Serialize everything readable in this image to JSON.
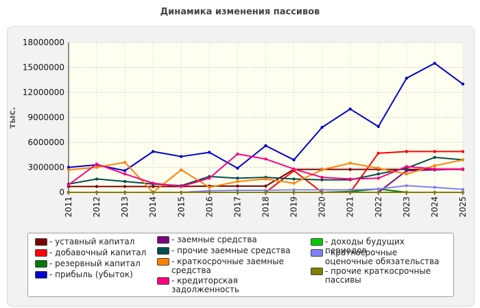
{
  "chart_data": {
    "type": "line",
    "title": "Динамика изменения пассивов",
    "ylabel": "тыс.",
    "xlabel": "",
    "ylim": [
      0,
      18000000
    ],
    "yticks": [
      0,
      3000000,
      6000000,
      9000000,
      12000000,
      15000000,
      18000000
    ],
    "ytick_labels": [
      "0",
      "3000000",
      "6000000",
      "9000000",
      "12000000",
      "15000000",
      "18000000"
    ],
    "x": [
      "2011",
      "2012",
      "2013",
      "2014",
      "2015",
      "2016",
      "2017",
      "2018",
      "2019",
      "2020",
      "2021",
      "2022",
      "2023",
      "2024",
      "2025"
    ],
    "grid": true,
    "legend_position": "bottom",
    "series": [
      {
        "name": "- уставный капитал",
        "color": "#7a0000",
        "values": [
          700000,
          700000,
          700000,
          700000,
          700000,
          750000,
          750000,
          750000,
          2750000,
          2750000,
          2750000,
          2750000,
          2750000,
          2750000,
          2750000
        ]
      },
      {
        "name": "- добавочный капитал",
        "color": "#ff0000",
        "values": [
          0,
          0,
          0,
          0,
          0,
          0,
          0,
          0,
          2600000,
          0,
          0,
          4700000,
          4900000,
          4900000,
          4900000
        ]
      },
      {
        "name": "- резервный капитал",
        "color": "#007a00",
        "values": [
          0,
          0,
          0,
          0,
          0,
          0,
          0,
          0,
          0,
          0,
          100000,
          400000,
          0,
          0,
          0
        ]
      },
      {
        "name": "- прибыль (убыток)",
        "color": "#0000cc",
        "values": [
          3000000,
          3300000,
          2600000,
          4900000,
          4300000,
          4800000,
          2900000,
          5600000,
          3900000,
          7800000,
          10000000,
          7900000,
          13700000,
          15500000,
          13000000
        ]
      },
      {
        "name": "- заемные средства",
        "color": "#800080",
        "values": [
          0,
          0,
          0,
          0,
          0,
          0,
          0,
          0,
          0,
          0,
          0,
          0,
          2600000,
          2700000,
          2800000
        ]
      },
      {
        "name": "- прочие заемные средства",
        "color": "#004d4d",
        "values": [
          1000000,
          1600000,
          1300000,
          1000000,
          800000,
          1900000,
          1700000,
          1800000,
          1600000,
          1500000,
          1500000,
          2200000,
          2900000,
          4200000,
          3900000
        ]
      },
      {
        "name": "- краткосрочные заемные средства",
        "color": "#ff8000",
        "values": [
          2700000,
          3000000,
          3600000,
          0,
          2700000,
          600000,
          1300000,
          1600000,
          1100000,
          2700000,
          3500000,
          2900000,
          2200000,
          3200000,
          3900000
        ]
      },
      {
        "name": "- кредиторская задолженность",
        "color": "#ff0080",
        "values": [
          900000,
          3400000,
          2200000,
          1100000,
          700000,
          1700000,
          4600000,
          4000000,
          2800000,
          1800000,
          1600000,
          1700000,
          3100000,
          2800000,
          2800000
        ]
      },
      {
        "name": "- доходы будущих периодов",
        "color": "#00cc00",
        "values": [
          0,
          0,
          0,
          0,
          0,
          0,
          0,
          0,
          0,
          0,
          0,
          0,
          0,
          0,
          0
        ]
      },
      {
        "name": "- краткосрочные оценочные обязательства",
        "color": "#8080ff",
        "values": [
          0,
          0,
          0,
          0,
          0,
          200000,
          250000,
          250000,
          300000,
          300000,
          300000,
          400000,
          800000,
          600000,
          350000
        ]
      },
      {
        "name": "- прочие краткосрочные пассивы",
        "color": "#808000",
        "values": [
          0,
          0,
          0,
          0,
          0,
          0,
          0,
          0,
          0,
          0,
          0,
          0,
          0,
          0,
          0
        ]
      }
    ]
  }
}
